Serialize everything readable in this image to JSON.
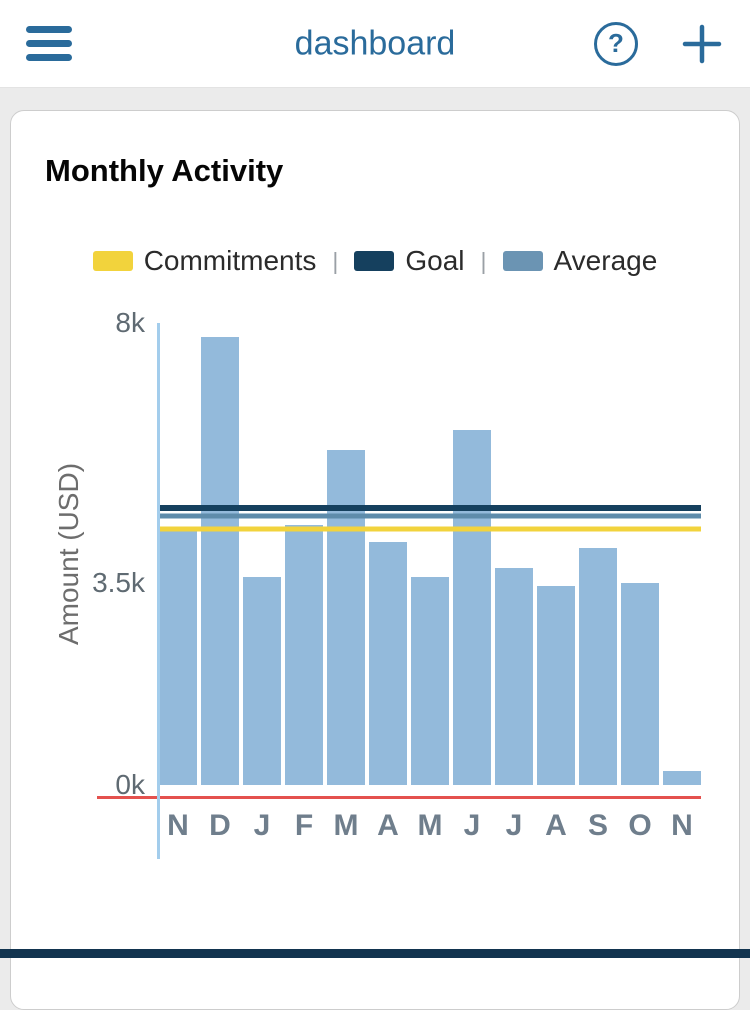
{
  "header": {
    "title": "dashboard"
  },
  "card": {
    "title": "Monthly Activity"
  },
  "chart_data": {
    "type": "bar",
    "title": "Monthly Activity",
    "xlabel": "",
    "ylabel": "Amount (USD)",
    "ylim": [
      0,
      8000
    ],
    "grid": false,
    "legend_position": "top",
    "legend_separator": "|",
    "yticks": [
      {
        "label": "8k",
        "value": 8000
      },
      {
        "label": "3.5k",
        "value": 3500
      },
      {
        "label": "0k",
        "value": 0
      }
    ],
    "categories": [
      "N",
      "D",
      "J",
      "F",
      "M",
      "A",
      "M",
      "J",
      "J",
      "A",
      "S",
      "O",
      "N"
    ],
    "values": [
      4450,
      7750,
      3600,
      4500,
      5800,
      4200,
      3600,
      6150,
      3750,
      3450,
      4100,
      3500,
      250
    ],
    "bar_color": "#93badb",
    "legend": [
      {
        "label": "Commitments",
        "color": "#f2d33c"
      },
      {
        "label": "Goal",
        "color": "#15405e"
      },
      {
        "label": "Average",
        "color": "#6b94b3"
      }
    ],
    "reference_lines": [
      {
        "name": "goal",
        "value": 4800,
        "color": "#15405e",
        "thickness": 6
      },
      {
        "name": "average",
        "value": 4650,
        "color": "#5e8cab",
        "thickness": 5
      },
      {
        "name": "commitments",
        "value": 4430,
        "color": "#f2d33c",
        "thickness": 5
      }
    ],
    "baseline_color": "#e4514e",
    "axis_line_color": "#a3cdec"
  },
  "colors": {
    "accent_blue": "#2a6b9b",
    "footer_navy": "#12344f",
    "page_bg": "#ebebeb"
  }
}
